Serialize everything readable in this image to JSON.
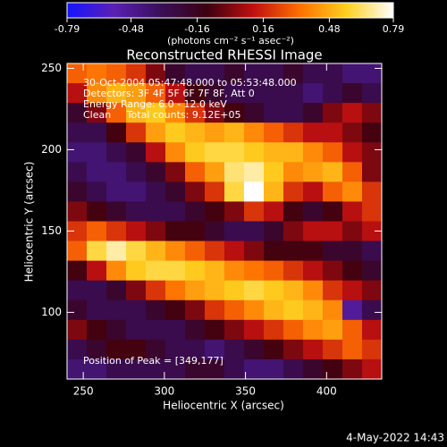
{
  "chart_data": {
    "type": "image",
    "title": "Reconstructed RHESSI Image",
    "x_label": "Heliocentric X (arcsec)",
    "y_label": "Heliocentric Y (arcsec)",
    "colorbar_label": "(photons cm⁻² s⁻¹ asec⁻²)",
    "annotations": [
      "30-Oct-2004 05:47:48.000 to 05:53:48.000",
      "Detectors: 3F 4F 5F 6F 7F 8F, Att 0",
      "Energy Range: 6.0 - 12.0 keV",
      "Clean     Total counts: 9.12E+05"
    ],
    "peak_label": "Position of Peak = [349,177]",
    "footer": "4-May-2022 14:43",
    "xlim": [
      240,
      434
    ],
    "ylim": [
      59,
      253
    ],
    "xticks": [
      250,
      300,
      350,
      400
    ],
    "yticks": [
      100,
      150,
      200,
      250
    ],
    "zlim": [
      -0.79,
      0.79
    ],
    "zticks": [
      -0.79,
      -0.48,
      -0.16,
      0.16,
      0.48,
      0.79
    ],
    "colorscale": [
      "#1414ff",
      "#5a20b4",
      "#3a0f5a",
      "#3c0010",
      "#c01010",
      "#ff7000",
      "#ffd020",
      "#ffffff"
    ],
    "z": [
      [
        0.3,
        0.35,
        0.3,
        0.2,
        0.0,
        -0.2,
        -0.3,
        -0.3,
        -0.2,
        -0.3,
        -0.3,
        -0.2,
        -0.3,
        -0.3,
        -0.4,
        -0.4
      ],
      [
        0.1,
        0.4,
        0.5,
        0.45,
        0.3,
        0.1,
        -0.1,
        -0.2,
        -0.3,
        -0.3,
        -0.3,
        -0.3,
        -0.4,
        -0.3,
        -0.2,
        -0.3
      ],
      [
        -0.2,
        0.0,
        0.3,
        0.5,
        0.55,
        0.4,
        0.2,
        0.0,
        -0.1,
        -0.2,
        -0.3,
        -0.3,
        -0.2,
        0.0,
        0.1,
        0.0
      ],
      [
        -0.3,
        -0.3,
        -0.1,
        0.2,
        0.45,
        0.55,
        0.5,
        0.45,
        0.5,
        0.4,
        0.3,
        0.2,
        0.1,
        0.1,
        0.0,
        -0.1
      ],
      [
        -0.4,
        -0.4,
        -0.3,
        -0.2,
        0.1,
        0.4,
        0.55,
        0.6,
        0.6,
        0.55,
        0.5,
        0.5,
        0.4,
        0.3,
        0.1,
        0.0
      ],
      [
        -0.3,
        -0.4,
        -0.4,
        -0.3,
        -0.2,
        0.0,
        0.3,
        0.45,
        0.65,
        0.7,
        0.55,
        0.4,
        0.45,
        0.5,
        0.3,
        0.0
      ],
      [
        -0.2,
        -0.3,
        -0.4,
        -0.4,
        -0.3,
        -0.2,
        0.0,
        0.2,
        0.6,
        0.79,
        0.5,
        0.2,
        0.1,
        0.3,
        0.4,
        0.2
      ],
      [
        0.0,
        -0.1,
        -0.2,
        -0.3,
        -0.3,
        -0.3,
        -0.2,
        -0.1,
        0.0,
        0.2,
        0.1,
        -0.1,
        -0.2,
        -0.1,
        0.1,
        0.2
      ],
      [
        0.2,
        0.3,
        0.2,
        0.1,
        0.0,
        -0.1,
        -0.1,
        -0.2,
        -0.3,
        -0.3,
        -0.2,
        0.0,
        0.1,
        0.1,
        0.0,
        0.1
      ],
      [
        0.3,
        0.6,
        0.7,
        0.6,
        0.5,
        0.4,
        0.3,
        0.2,
        0.1,
        0.0,
        -0.1,
        -0.1,
        -0.1,
        -0.2,
        -0.2,
        -0.3
      ],
      [
        -0.1,
        0.1,
        0.4,
        0.55,
        0.6,
        0.6,
        0.55,
        0.5,
        0.4,
        0.35,
        0.3,
        0.2,
        0.1,
        0.0,
        -0.1,
        -0.2
      ],
      [
        -0.3,
        -0.3,
        -0.2,
        0.0,
        0.2,
        0.35,
        0.45,
        0.5,
        0.55,
        0.6,
        0.55,
        0.5,
        0.4,
        0.2,
        0.1,
        0.0
      ],
      [
        -0.2,
        -0.3,
        -0.3,
        -0.3,
        -0.2,
        -0.1,
        0.0,
        0.2,
        0.3,
        0.4,
        0.5,
        0.55,
        0.5,
        0.4,
        -0.5,
        -0.3
      ],
      [
        0.0,
        -0.1,
        -0.2,
        -0.3,
        -0.3,
        -0.3,
        -0.2,
        -0.1,
        0.0,
        0.1,
        0.2,
        0.3,
        0.4,
        0.45,
        0.3,
        0.1
      ],
      [
        -0.3,
        -0.2,
        -0.1,
        -0.1,
        -0.2,
        -0.3,
        -0.3,
        -0.4,
        -0.3,
        -0.2,
        -0.1,
        0.0,
        0.1,
        0.2,
        0.3,
        0.2
      ],
      [
        -0.4,
        -0.4,
        -0.3,
        -0.3,
        -0.3,
        -0.3,
        -0.2,
        -0.2,
        -0.3,
        -0.4,
        -0.4,
        -0.3,
        -0.2,
        -0.1,
        0.0,
        0.1
      ]
    ]
  }
}
